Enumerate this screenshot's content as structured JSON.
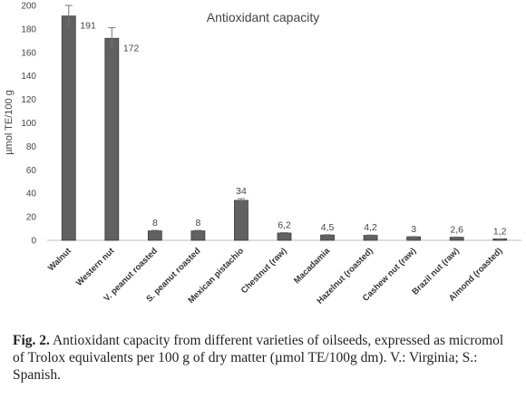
{
  "chart_data": {
    "type": "bar",
    "title": "Antioxidant capacity",
    "ylabel": "µmol TE/100 g",
    "xlabel": "",
    "ylim": [
      0,
      200
    ],
    "yticks": [
      0,
      20,
      40,
      60,
      80,
      100,
      120,
      140,
      160,
      180,
      200
    ],
    "grid": false,
    "bar_color": "#616161",
    "categories": [
      "Walnut",
      "Western nut",
      "V. peanut roasted",
      "S. peanut roasted",
      "Mexican pistachio",
      "Chestnut (raw)",
      "Macadamia",
      "Hazelnut (roasted)",
      "Cashew nut (raw)",
      "Brazil nut (raw)",
      "Almond (roasted)"
    ],
    "values": [
      191,
      172,
      8,
      8,
      34,
      6.2,
      4.5,
      4.2,
      3,
      2.6,
      1.2
    ],
    "value_labels": [
      "191",
      "172",
      "8",
      "8",
      "34",
      "6,2",
      "4,5",
      "4,2",
      "3",
      "2,6",
      "1,2"
    ],
    "errors": [
      9,
      9,
      0.5,
      0.5,
      1.5,
      0.4,
      0.3,
      0.3,
      0.2,
      0.2,
      0.1
    ]
  },
  "caption": {
    "label": "Fig. 2.",
    "text": "Antioxidant capacity from different varieties of oilseeds, expressed as micromol of Trolox equivalents per 100 g of dry matter (µmol TE/100g dm). V.: Virginia; S.: Spanish."
  }
}
